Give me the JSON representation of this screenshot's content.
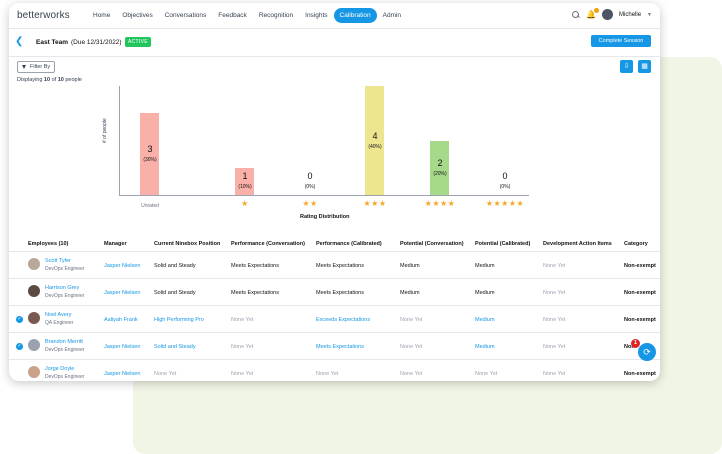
{
  "app": {
    "logo": "betterworks"
  },
  "nav": {
    "items": [
      "Home",
      "Objectives",
      "Conversations",
      "Feedback",
      "Recognition",
      "Insights",
      "Calibration",
      "Admin"
    ],
    "active": "Calibration",
    "user": "Michelle"
  },
  "header": {
    "team": "East Team",
    "due": "(Due 12/31/2022)",
    "status": "ACTIVE",
    "complete_label": "Complete Session"
  },
  "filter": {
    "label": "Filter By"
  },
  "display": {
    "prefix": "Displaying",
    "shown": "10",
    "mid": "of",
    "total": "10",
    "suffix": "people"
  },
  "chart_data": {
    "type": "bar",
    "ylabel": "# of people",
    "xlabel": "Rating Distribution",
    "categories": [
      "Unrated",
      "1 star",
      "2 stars",
      "3 stars",
      "4 stars",
      "5 stars"
    ],
    "values": [
      3,
      1,
      0,
      4,
      2,
      0
    ],
    "percents": [
      "(30%)",
      "(10%)",
      "(0%)",
      "(40%)",
      "(20%)",
      "(0%)"
    ],
    "colors": [
      "#f9b0a8",
      "#f9b0a8",
      "#f9b0a8",
      "#eee58f",
      "#a6d98a",
      "#a6d98a"
    ],
    "ylim": [
      0,
      4
    ]
  },
  "table": {
    "headers": [
      "Employees (10)",
      "Manager",
      "Current Ninebox Position",
      "Performance (Conversation)",
      "Performance (Calibrated)",
      "Potential (Conversation)",
      "Potential (Calibrated)",
      "Development Action Items",
      "Category"
    ],
    "rows": [
      {
        "name": "Scott Tyler",
        "title": "DevOps Engineer",
        "manager": "Jasper Nielsen",
        "ninebox": "Solid and Steady",
        "perf_conv": "Meets Expectations",
        "perf_cal": "Meets Expectations",
        "pot_conv": "Medium",
        "pot_cal": "Medium",
        "dev": "None Yet",
        "category": "Non-exempt",
        "checked": false
      },
      {
        "name": "Harrison Grey",
        "title": "DevOps Engineer",
        "manager": "Jasper Nielsen",
        "ninebox": "Solid and Steady",
        "perf_conv": "Meets Expectations",
        "perf_cal": "Meets Expectations",
        "pot_conv": "Medium",
        "pot_cal": "Medium",
        "dev": "None Yet",
        "category": "Non-exempt",
        "checked": false
      },
      {
        "name": "Noel Avery",
        "title": "QA Engineer",
        "manager": "Aaliyah Frank",
        "ninebox": "High Performing Pro",
        "perf_conv": "None Yet",
        "perf_cal": "Exceeds Expectations",
        "pot_conv": "None Yet",
        "pot_cal": "Medium",
        "dev": "None Yet",
        "category": "Non-exempt",
        "checked": true
      },
      {
        "name": "Brandon Merritt",
        "title": "DevOps Engineer",
        "manager": "Jasper Nielsen",
        "ninebox": "Solid and Steady",
        "perf_conv": "None Yet",
        "perf_cal": "Meets Expectations",
        "pot_conv": "None Yet",
        "pot_cal": "Medium",
        "dev": "None Yet",
        "category": "Non-",
        "checked": true
      },
      {
        "name": "Jorge Doyle",
        "title": "DevOps Engineer",
        "manager": "Jasper Nielsen",
        "ninebox": "None Yet",
        "perf_conv": "None Yet",
        "perf_cal": "None Yet",
        "pot_conv": "None Yet",
        "pot_cal": "None Yet",
        "dev": "None Yet",
        "category": "Non-exempt",
        "checked": false
      }
    ]
  },
  "notification": {
    "count": "1"
  }
}
